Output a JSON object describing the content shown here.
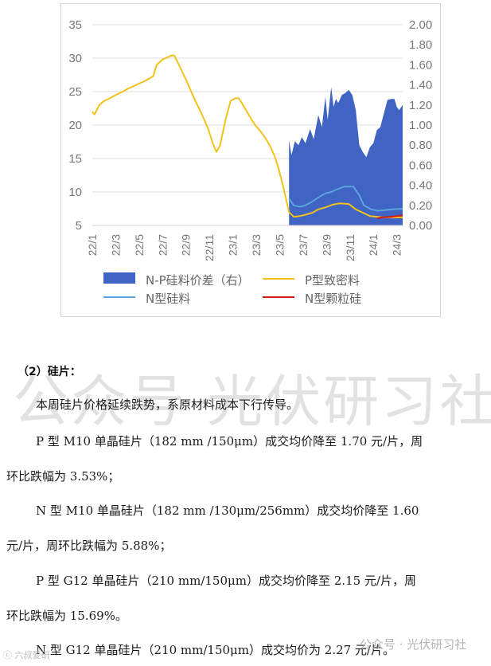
{
  "chart_data": {
    "type": "area+line",
    "left_axis": {
      "ticks": [
        "35",
        "30",
        "25",
        "20",
        "15",
        "10",
        "5"
      ],
      "range": [
        5,
        35
      ]
    },
    "right_axis": {
      "ticks": [
        "2.00",
        "1.80",
        "1.60",
        "1.40",
        "1.20",
        "1.00",
        "0.80",
        "0.60",
        "0.40",
        "0.20",
        "0.00"
      ],
      "range": [
        0,
        2.0
      ]
    },
    "x_ticks": [
      "22/1",
      "22/3",
      "22/5",
      "22/7",
      "22/9",
      "22/11",
      "23/1",
      "23/3",
      "23/5",
      "23/7",
      "23/9",
      "23/11",
      "24/1",
      "24/3"
    ],
    "x_range": [
      0,
      26.5
    ],
    "legend": [
      "N-P硅料价差（右）",
      "P型致密料",
      "N型硅料",
      "N型颗粒硅"
    ],
    "series": [
      {
        "name": "N-P硅料价差（右）",
        "axis": "right",
        "style": "area",
        "color": "#3f64c4",
        "points": [
          [
            16.8,
            0.85
          ],
          [
            17.0,
            0.7
          ],
          [
            17.3,
            0.84
          ],
          [
            17.6,
            0.8
          ],
          [
            17.9,
            0.88
          ],
          [
            18.2,
            0.82
          ],
          [
            18.6,
            0.96
          ],
          [
            18.9,
            0.86
          ],
          [
            19.3,
            1.1
          ],
          [
            19.6,
            0.98
          ],
          [
            19.9,
            1.28
          ],
          [
            20.1,
            1.05
          ],
          [
            20.4,
            1.38
          ],
          [
            20.6,
            1.18
          ],
          [
            20.8,
            1.26
          ],
          [
            21.0,
            1.22
          ],
          [
            21.3,
            1.3
          ],
          [
            21.6,
            1.32
          ],
          [
            21.9,
            1.35
          ],
          [
            22.2,
            1.3
          ],
          [
            22.5,
            1.15
          ],
          [
            22.8,
            0.8
          ],
          [
            23.1,
            0.73
          ],
          [
            23.4,
            0.68
          ],
          [
            23.7,
            0.78
          ],
          [
            24.0,
            0.82
          ],
          [
            24.3,
            0.95
          ],
          [
            24.6,
            0.98
          ],
          [
            24.9,
            1.12
          ],
          [
            25.2,
            1.25
          ],
          [
            25.5,
            1.26
          ],
          [
            25.8,
            1.26
          ],
          [
            26.0,
            1.18
          ],
          [
            26.2,
            1.15
          ],
          [
            26.5,
            1.2
          ]
        ]
      },
      {
        "name": "P型致密料",
        "axis": "left",
        "style": "line",
        "color": "#f2c21a",
        "points": [
          [
            0,
            22.0
          ],
          [
            0.2,
            21.6
          ],
          [
            0.6,
            23.0
          ],
          [
            1.0,
            23.6
          ],
          [
            1.5,
            24.0
          ],
          [
            2.0,
            24.5
          ],
          [
            2.6,
            25.0
          ],
          [
            3.0,
            25.4
          ],
          [
            3.5,
            25.8
          ],
          [
            4.0,
            26.2
          ],
          [
            4.5,
            26.6
          ],
          [
            4.9,
            27.0
          ],
          [
            5.2,
            27.3
          ],
          [
            5.5,
            29.0
          ],
          [
            6.0,
            29.8
          ],
          [
            6.5,
            30.2
          ],
          [
            6.8,
            30.4
          ],
          [
            7.0,
            30.4
          ],
          [
            7.4,
            29.0
          ],
          [
            8.0,
            26.8
          ],
          [
            8.7,
            24.0
          ],
          [
            9.3,
            21.8
          ],
          [
            9.9,
            19.4
          ],
          [
            10.3,
            17.2
          ],
          [
            10.6,
            16.0
          ],
          [
            10.9,
            16.9
          ],
          [
            11.4,
            21.0
          ],
          [
            11.8,
            23.6
          ],
          [
            12.2,
            24.0
          ],
          [
            12.5,
            24.0
          ],
          [
            12.8,
            23.2
          ],
          [
            13.2,
            22.0
          ],
          [
            13.6,
            20.8
          ],
          [
            14.0,
            19.8
          ],
          [
            14.4,
            19.0
          ],
          [
            14.8,
            18.0
          ],
          [
            15.2,
            16.8
          ],
          [
            15.6,
            15.2
          ],
          [
            15.9,
            13.5
          ],
          [
            16.3,
            10.8
          ],
          [
            16.8,
            7.0
          ],
          [
            17.2,
            6.3
          ],
          [
            17.7,
            6.4
          ],
          [
            18.2,
            6.6
          ],
          [
            18.8,
            6.9
          ],
          [
            19.3,
            7.4
          ],
          [
            19.9,
            7.7
          ],
          [
            20.5,
            8.1
          ],
          [
            21.1,
            8.3
          ],
          [
            21.9,
            8.2
          ],
          [
            22.5,
            7.4
          ],
          [
            23.1,
            6.9
          ],
          [
            23.7,
            6.4
          ],
          [
            24.3,
            6.3
          ],
          [
            24.9,
            6.2
          ],
          [
            25.5,
            6.2
          ],
          [
            26.5,
            6.2
          ]
        ]
      },
      {
        "name": "N型硅料",
        "axis": "left",
        "style": "line",
        "color": "#5ea3de",
        "points": [
          [
            16.8,
            9.0
          ],
          [
            17.2,
            8.0
          ],
          [
            17.7,
            7.8
          ],
          [
            18.2,
            8.0
          ],
          [
            18.8,
            8.6
          ],
          [
            19.4,
            9.3
          ],
          [
            19.9,
            9.8
          ],
          [
            20.4,
            10.0
          ],
          [
            20.9,
            10.4
          ],
          [
            21.5,
            10.8
          ],
          [
            22.3,
            10.8
          ],
          [
            22.8,
            9.5
          ],
          [
            23.2,
            8.0
          ],
          [
            23.8,
            7.4
          ],
          [
            24.4,
            7.2
          ],
          [
            25.0,
            7.3
          ],
          [
            25.6,
            7.4
          ],
          [
            26.5,
            7.5
          ]
        ]
      },
      {
        "name": "N型颗粒硅",
        "axis": "left",
        "style": "line",
        "color": "#cc1a1a",
        "points": [
          [
            24.3,
            6.05
          ],
          [
            24.7,
            6.2
          ],
          [
            25.1,
            6.25
          ],
          [
            25.5,
            6.3
          ],
          [
            25.9,
            6.4
          ],
          [
            26.5,
            6.5
          ]
        ]
      }
    ]
  },
  "section": {
    "title": "（2）硅片："
  },
  "paragraphs": [
    "本周硅片价格延续跌势，系原材料成本下行传导。",
    "P 型 M10 单晶硅片（182 mm /150μm）成交均价降至 1.70 元/片，周",
    "环比跌幅为 3.53%；",
    "N 型 M10 单晶硅片（182 mm /130μm/256mm）成交均价降至 1.60",
    "元/片，周环比跌幅为 5.88%；",
    "P 型 G12 单晶硅片（210 mm/150μm）成交均价降至 2.15 元/片，周",
    "环比跌幅为 15.69%。",
    "N 型 G12 单晶硅片（210 mm/150μm）成交均价为 2.27 元/片。"
  ],
  "watermarks": {
    "large": "公众号 光伏研习社",
    "bottom_right": "公众号 · 光伏研习社",
    "bottom_left": "ⓒ 六叔爱研"
  }
}
